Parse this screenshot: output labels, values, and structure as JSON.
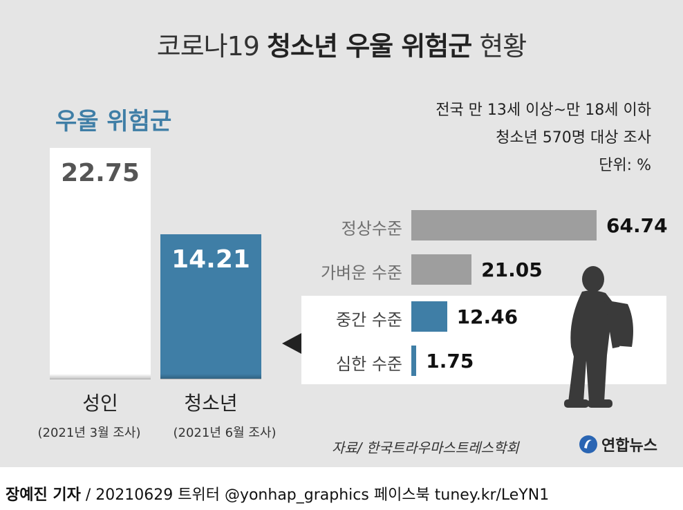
{
  "title": {
    "prefix": "코로나19",
    "main": "청소년 우울 위험군",
    "suffix": "현황"
  },
  "notes": [
    "전국 만 13세 이상~만 18세 이하",
    "청소년 570명 대상 조사",
    "단위: %"
  ],
  "colors": {
    "background": "#e5e5e5",
    "blue": "#3f7ea6",
    "gray": "#9e9e9e",
    "white": "#ffffff",
    "dark_text": "#555555"
  },
  "chart_data": [
    {
      "type": "bar",
      "title": "우울 위험군",
      "categories": [
        "성인",
        "청소년"
      ],
      "category_notes": [
        "(2021년 3월 조사)",
        "(2021년 6월 조사)"
      ],
      "values": [
        22.75,
        14.21
      ],
      "value_labels": [
        "22.75",
        "14.21"
      ],
      "ylim": [
        0,
        22.75
      ]
    },
    {
      "type": "bar",
      "orientation": "horizontal",
      "categories": [
        "정상수준",
        "가벼운 수준",
        "중간 수준",
        "심한 수준"
      ],
      "values": [
        64.74,
        21.05,
        12.46,
        1.75
      ],
      "value_labels": [
        "64.74",
        "21.05",
        "12.46",
        "1.75"
      ],
      "highlighted": [
        "중간 수준",
        "심한 수준"
      ],
      "xlim": [
        0,
        64.74
      ]
    }
  ],
  "source": "자료/ 한국트라우마스트레스학회",
  "logo": {
    "text": "연합뉴스"
  },
  "footer": {
    "author": "장예진 기자",
    "rest": " / 20210629 트위터 @yonhap_graphics  페이스북 tuney.kr/LeYN1"
  }
}
